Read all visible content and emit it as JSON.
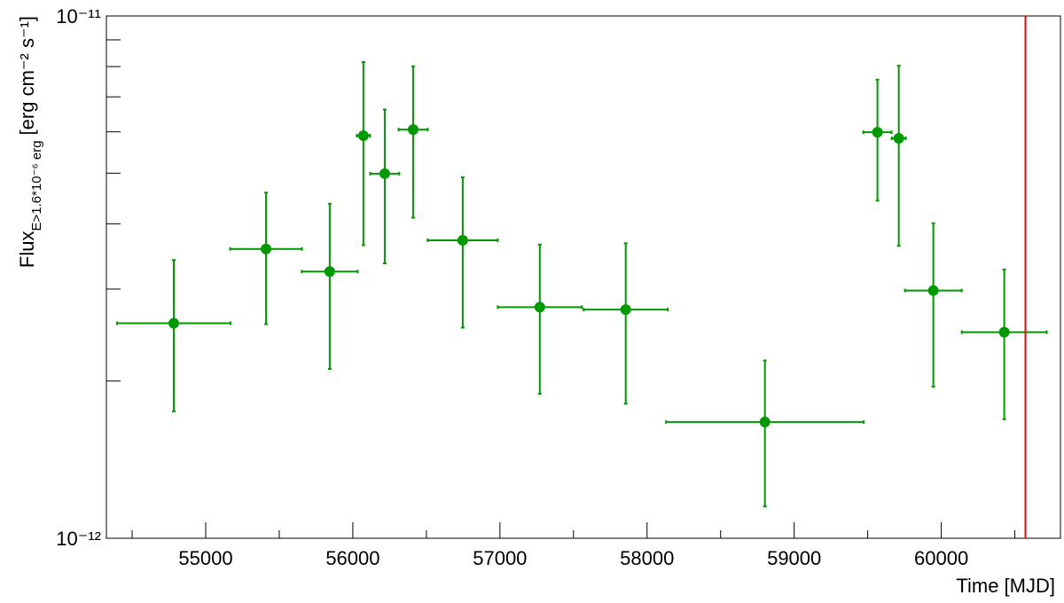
{
  "chart_data": {
    "type": "scatter",
    "x_label": "Time [MJD]",
    "y_label": {
      "main": "Flux",
      "subscript": "E>1.6*10⁻⁶ erg",
      "unit": "[erg cm⁻² s⁻¹]"
    },
    "x": [
      54783,
      55410,
      55843,
      56072,
      56217,
      56410,
      56747,
      57271,
      57855,
      58801,
      59566,
      59711,
      59946,
      60428
    ],
    "xerr": [
      386,
      244,
      190,
      45,
      99,
      99,
      238,
      286,
      286,
      672,
      96,
      48,
      193,
      289
    ],
    "series": [
      {
        "color": "#009900",
        "values": [
          2.58e-12,
          3.58e-12,
          3.24e-12,
          5.9e-12,
          4.99e-12,
          6.06e-12,
          3.72e-12,
          2.77e-12,
          2.74e-12,
          1.67e-12,
          5.99e-12,
          5.83e-12,
          2.98e-12,
          2.48e-12
        ],
        "yerr": [
          8.3e-13,
          1.01e-12,
          1.13e-12,
          2.26e-12,
          1.63e-12,
          1.95e-12,
          1.19e-12,
          8.8e-13,
          9.3e-13,
          5.2e-13,
          1.56e-12,
          2.2e-12,
          1.03e-12,
          7.9e-13
        ]
      }
    ],
    "xlim": [
      54325,
      60810
    ],
    "xticks": [
      55000,
      56000,
      57000,
      58000,
      59000,
      60000
    ],
    "minor_xticks": [
      54500,
      55500,
      56500,
      57500,
      58500,
      59500,
      60500
    ],
    "ylim": [
      1e-12,
      1e-11
    ],
    "yticks": [
      {
        "value": 1e-12,
        "label": "10⁻¹²"
      },
      {
        "value": 1e-11,
        "label": "10⁻¹¹"
      }
    ],
    "minor_yticks": [
      2e-12,
      3e-12,
      4e-12,
      5e-12,
      6e-12,
      7e-12,
      8e-12,
      9e-12
    ],
    "log_y": true,
    "reference_line": {
      "x": 60572,
      "color": "#ff0000"
    }
  }
}
